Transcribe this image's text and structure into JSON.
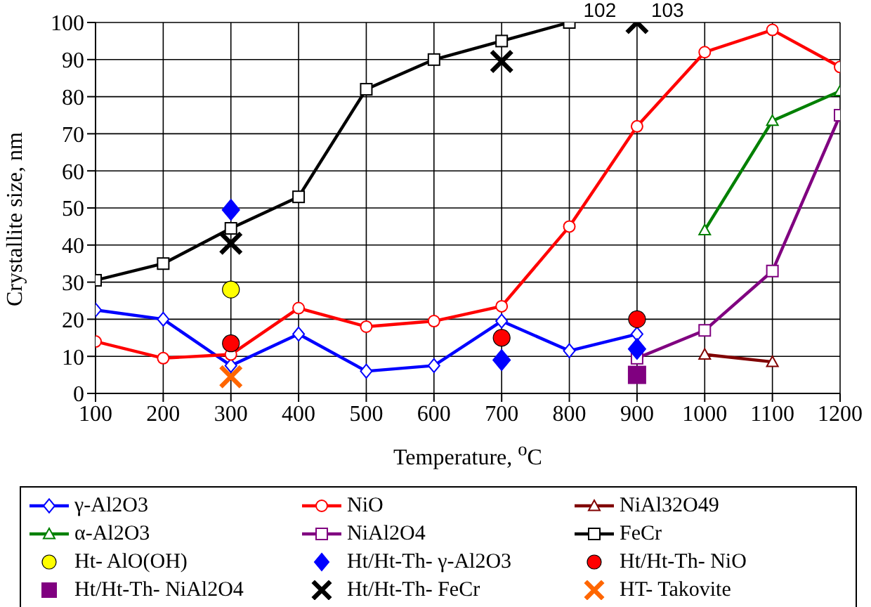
{
  "chart_data": {
    "type": "line",
    "xlabel": "Temperature, $^{o}$C",
    "ylabel": "Crystallite size, nm",
    "xlim": [
      100,
      1200
    ],
    "xticks": [
      100,
      200,
      300,
      400,
      500,
      600,
      700,
      800,
      900,
      1000,
      1100,
      1200
    ],
    "ylim": [
      0,
      100
    ],
    "yticks": [
      0,
      10,
      20,
      30,
      40,
      50,
      60,
      70,
      80,
      90,
      100
    ],
    "grid": true,
    "legend": "bottom",
    "annotations": [
      {
        "text": "102",
        "x": 800,
        "y": 100
      },
      {
        "text": "103",
        "x": 900,
        "y": 100
      }
    ],
    "series": [
      {
        "name": "γ-Al2O3",
        "color": "#0000ff",
        "marker": "diamond",
        "x": [
          100,
          200,
          300,
          400,
          500,
          600,
          700,
          800,
          900
        ],
        "values": [
          22.5,
          20,
          7.5,
          16,
          6,
          7.5,
          19.5,
          11.5,
          16
        ]
      },
      {
        "name": "NiO",
        "color": "#ff0000",
        "marker": "circle",
        "x": [
          100,
          200,
          300,
          400,
          500,
          600,
          700,
          800,
          900,
          1000,
          1100,
          1200
        ],
        "values": [
          14,
          9.5,
          10.5,
          23,
          18,
          19.5,
          23.5,
          45,
          72,
          92,
          98,
          88
        ]
      },
      {
        "name": "NiAl32O49",
        "color": "#800000",
        "marker": "triangle",
        "x": [
          1000,
          1100
        ],
        "values": [
          10.5,
          8.5
        ]
      },
      {
        "name": "α-Al2O3",
        "color": "#008000",
        "marker": "triangle",
        "x": [
          1000,
          1100,
          1200
        ],
        "values": [
          44,
          73.5,
          81.5
        ]
      },
      {
        "name": "NiAl2O4",
        "color": "#800080",
        "marker": "square",
        "x": [
          900,
          1000,
          1100,
          1200
        ],
        "values": [
          9.5,
          17,
          33,
          75
        ]
      },
      {
        "name": "FeCr",
        "color": "#000000",
        "marker": "square",
        "x": [
          100,
          200,
          300,
          400,
          500,
          600,
          700,
          800
        ],
        "values": [
          30.5,
          35,
          44.5,
          53,
          82,
          90,
          95,
          100
        ]
      },
      {
        "name": "Ht- AlO(OH)",
        "type": "scatter",
        "color": "#ffff00",
        "marker": "circle",
        "x": [
          300
        ],
        "values": [
          28
        ]
      },
      {
        "name": "Ht/Ht-Th- γ-Al2O3",
        "type": "scatter",
        "color": "#0000ff",
        "marker": "diamond",
        "x": [
          300,
          700,
          900
        ],
        "values": [
          49.5,
          9,
          12
        ]
      },
      {
        "name": "Ht/Ht-Th- NiO",
        "type": "scatter",
        "color": "#ff0000",
        "marker": "circle",
        "x": [
          300,
          700,
          900
        ],
        "values": [
          13.5,
          15,
          20
        ]
      },
      {
        "name": "Ht/Ht-Th- NiAl2O4",
        "type": "scatter",
        "color": "#800080",
        "marker": "square",
        "x": [
          900
        ],
        "values": [
          5
        ]
      },
      {
        "name": "Ht/Ht-Th- FeCr",
        "type": "scatter",
        "color": "#000000",
        "marker": "cross",
        "x": [
          300,
          700,
          900
        ],
        "values": [
          40.5,
          89.5,
          100
        ]
      },
      {
        "name": "HT- Takovite",
        "type": "scatter",
        "color": "#ff6600",
        "marker": "cross",
        "x": [
          300
        ],
        "values": [
          4.5
        ]
      }
    ]
  }
}
